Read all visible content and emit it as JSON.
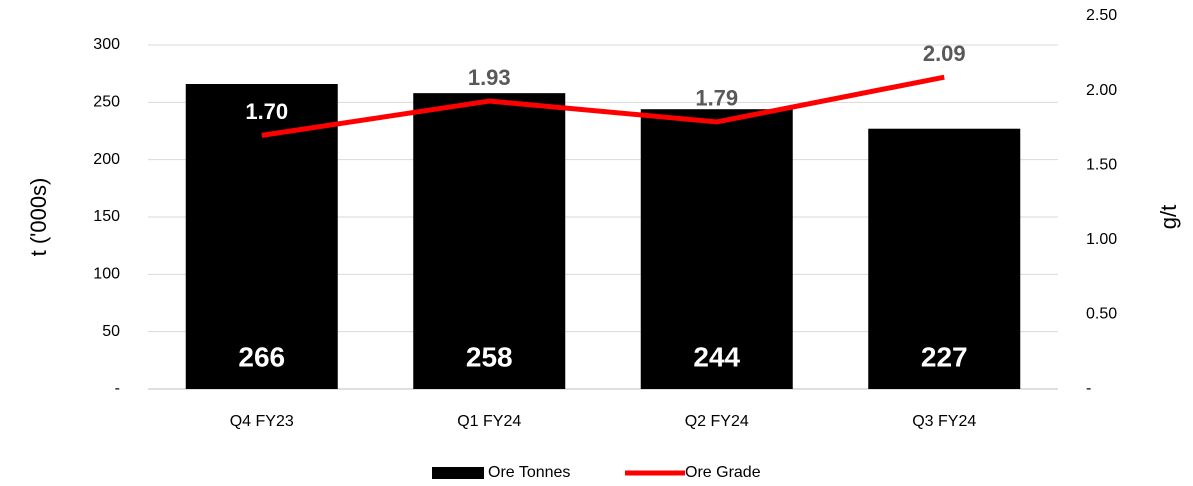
{
  "chart_data": {
    "type": "bar",
    "categories": [
      "Q4 FY23",
      "Q1 FY24",
      "Q2 FY24",
      "Q3 FY24"
    ],
    "series": [
      {
        "name": "Ore Tonnes",
        "type": "bar",
        "color": "#000000",
        "values": [
          266,
          258,
          244,
          227
        ]
      },
      {
        "name": "Ore Grade",
        "type": "line",
        "axis": "y2",
        "color": "#ff0000",
        "values": [
          1.7,
          1.93,
          1.79,
          2.09
        ],
        "value_labels": [
          "1.70",
          "1.93",
          "1.79",
          "2.09"
        ]
      }
    ],
    "ylabel": "t ('000s)",
    "y2label": "g/t",
    "ylim": [
      0,
      300
    ],
    "yticks": [
      {
        "value": 0,
        "label": "-"
      },
      50,
      100,
      150,
      200,
      250,
      300
    ],
    "y2lim": [
      0,
      2.5
    ],
    "y2ticks": [
      {
        "value": 0,
        "label": "-"
      },
      {
        "value": 0.5,
        "label": "0.50"
      },
      {
        "value": 1,
        "label": "1.00"
      },
      {
        "value": 1.5,
        "label": "1.50"
      },
      {
        "value": 2,
        "label": "2.00"
      },
      {
        "value": 2.5,
        "label": "2.50"
      }
    ],
    "grid": true,
    "legend": "bottom"
  }
}
